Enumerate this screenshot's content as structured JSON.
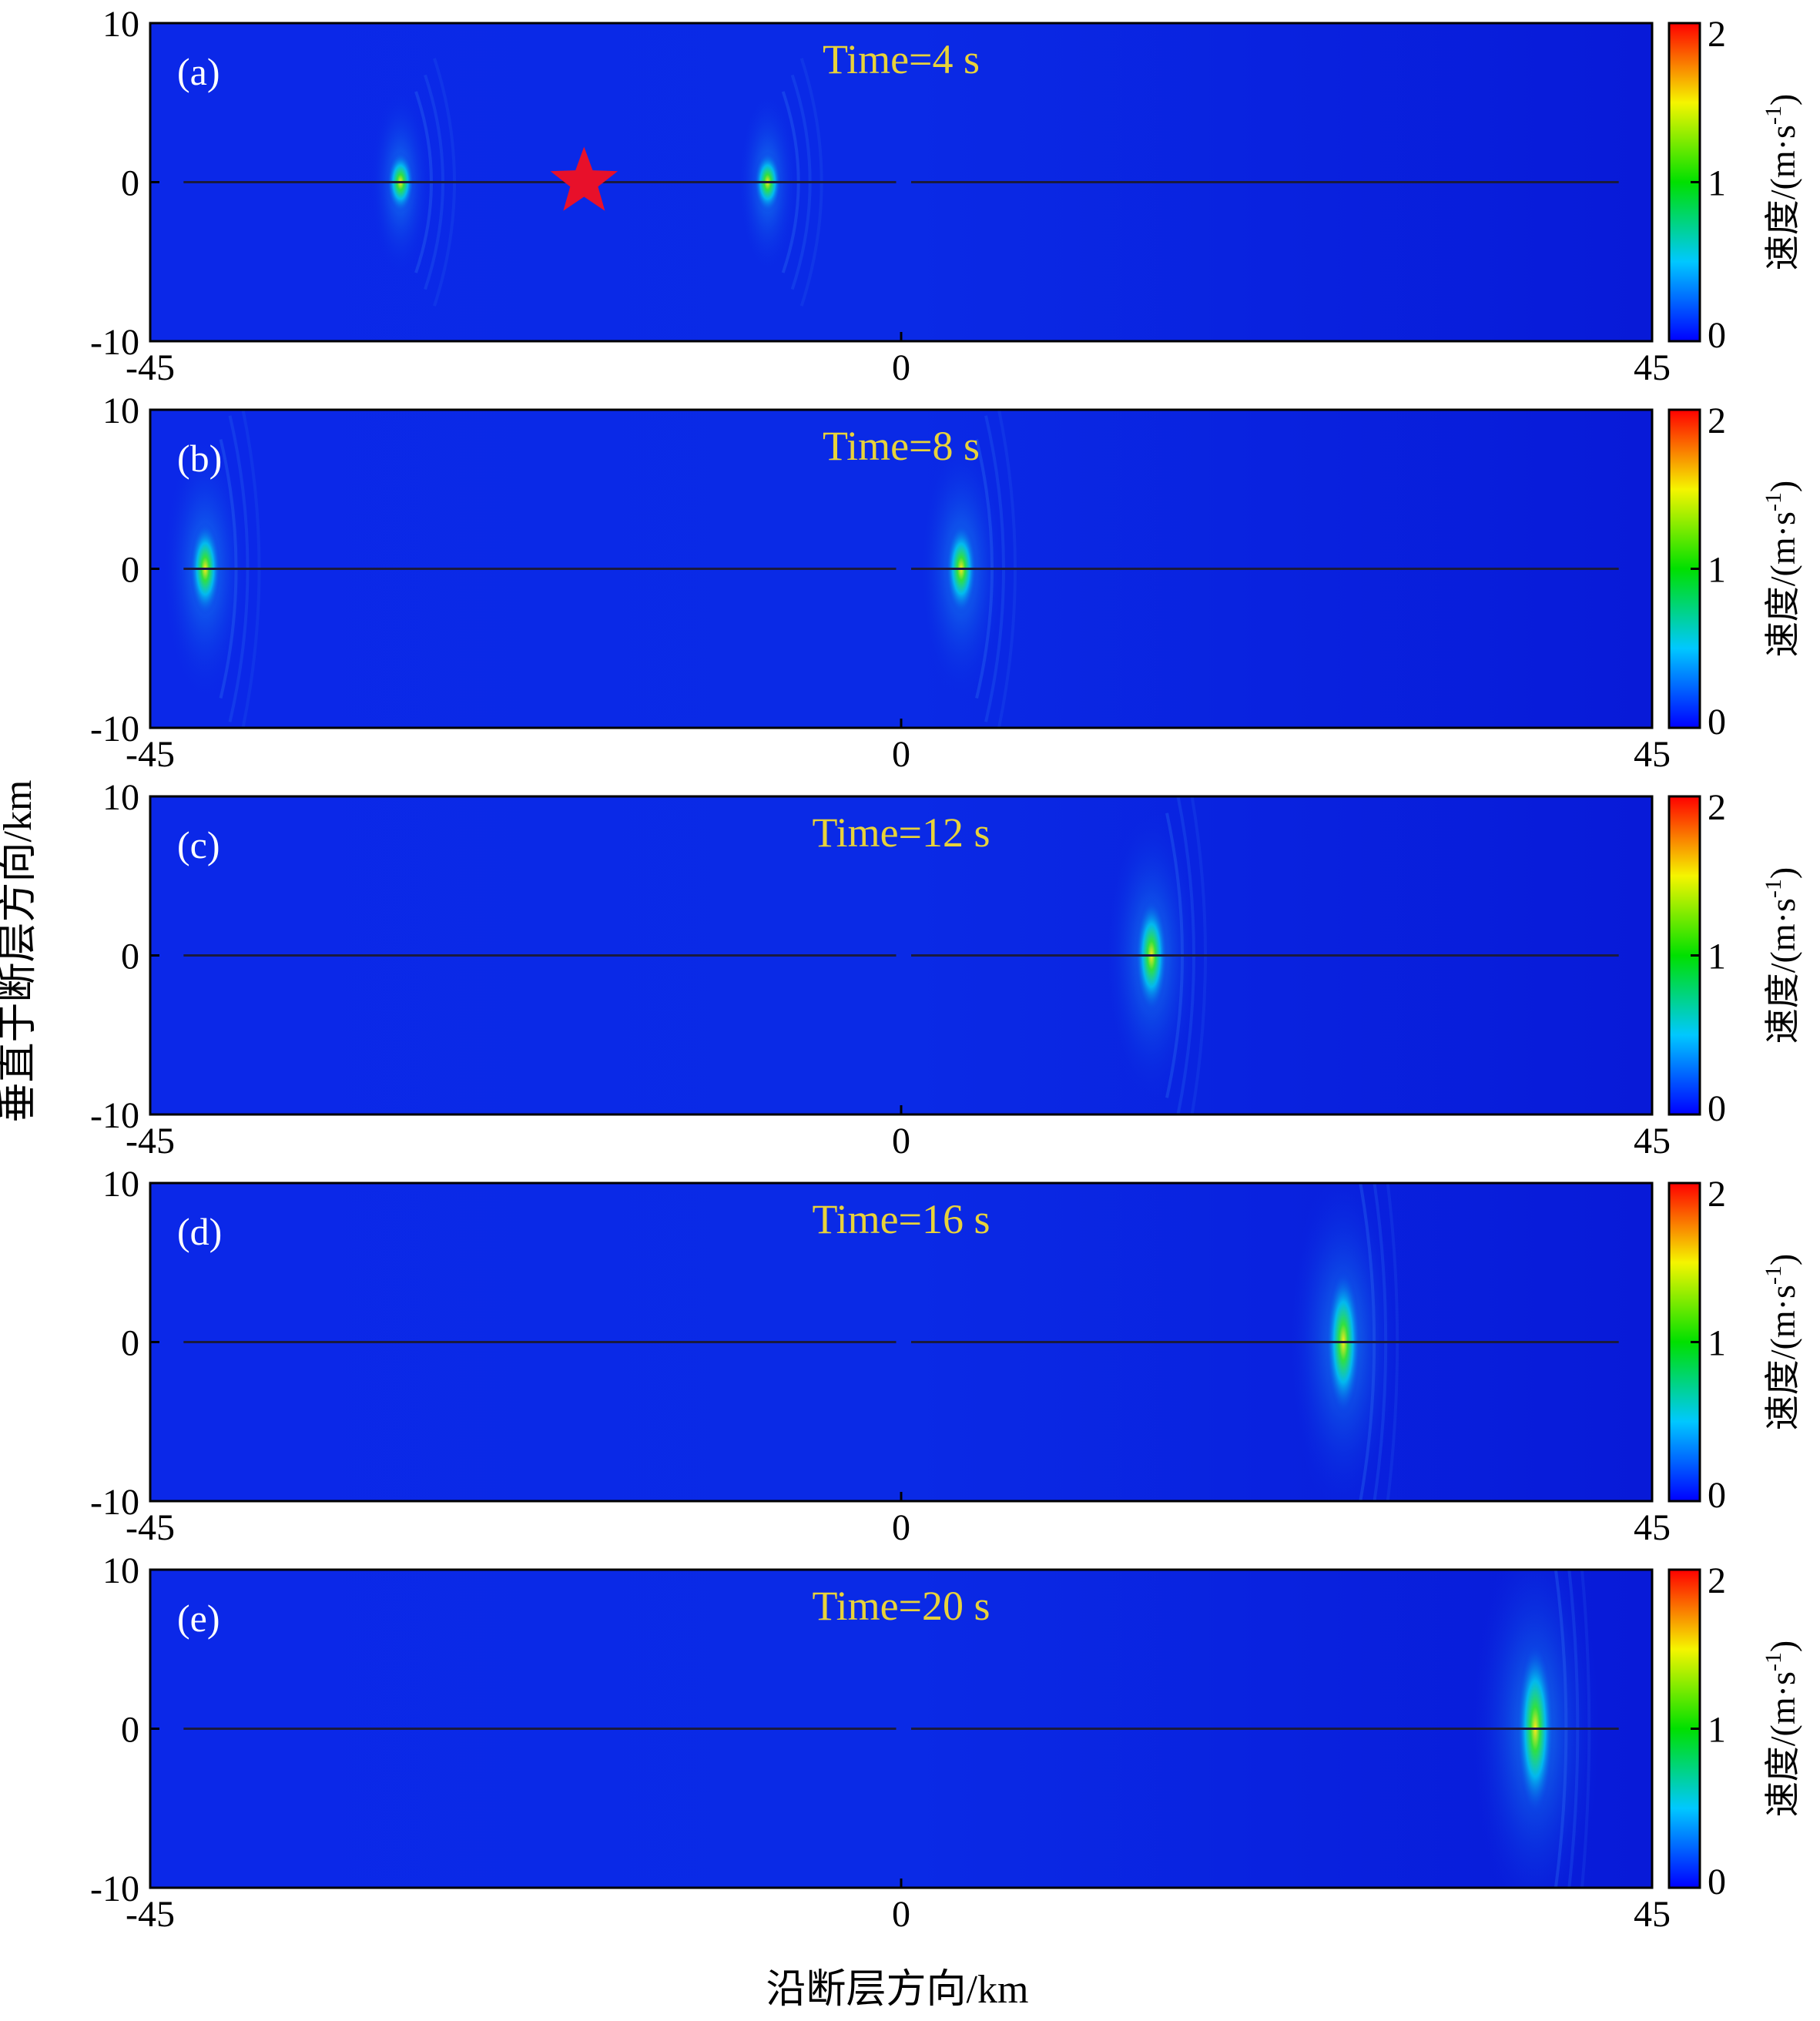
{
  "figure": {
    "y_axis_label": "垂直于断层方向/km",
    "x_axis_label": "沿断层方向/km",
    "colorbar_label_main": "速度/(m·s",
    "colorbar_label_sup": "-1",
    "colorbar_label_close": ")",
    "colors": {
      "background_field": "#0a1fe6",
      "fault_line": "#1a1a40",
      "annotation_text": "#e8d23a",
      "epicenter_star": "#e8102a"
    }
  },
  "chart_data": [
    {
      "type": "heatmap",
      "panel": "(a)",
      "title": "Time=4 s",
      "time_s": 4,
      "x_ticks": [
        "-45",
        "0",
        "45"
      ],
      "y_ticks": [
        "10",
        "0",
        "-10"
      ],
      "xlim": [
        -45,
        45
      ],
      "ylim": [
        -10,
        10
      ],
      "colorbar": {
        "ticks": [
          "2",
          "1",
          "0"
        ],
        "range": [
          0,
          2
        ]
      },
      "epicenter": {
        "x": -19,
        "y": 0,
        "marker": "star"
      },
      "features": [
        {
          "x": -30,
          "y": 0,
          "peak": 0.9,
          "spread": 0.7
        },
        {
          "x": -8,
          "y": 0,
          "peak": 0.9,
          "spread": 0.7
        }
      ]
    },
    {
      "type": "heatmap",
      "panel": "(b)",
      "title": "Time=8 s",
      "time_s": 8,
      "x_ticks": [
        "-45",
        "0",
        "45"
      ],
      "y_ticks": [
        "10",
        "0",
        "-10"
      ],
      "xlim": [
        -45,
        45
      ],
      "ylim": [
        -10,
        10
      ],
      "colorbar": {
        "ticks": [
          "2",
          "1",
          "0"
        ],
        "range": [
          0,
          2
        ]
      },
      "features": [
        {
          "x": -41.7,
          "y": 0,
          "peak": 1.05,
          "spread": 1.0
        },
        {
          "x": 3.6,
          "y": 0,
          "peak": 1.0,
          "spread": 1.0
        }
      ]
    },
    {
      "type": "heatmap",
      "panel": "(c)",
      "title": "Time=12 s",
      "time_s": 12,
      "x_ticks": [
        "-45",
        "0",
        "45"
      ],
      "y_ticks": [
        "10",
        "0",
        "-10"
      ],
      "xlim": [
        -45,
        45
      ],
      "ylim": [
        -10,
        10
      ],
      "colorbar": {
        "ticks": [
          "2",
          "1",
          "0"
        ],
        "range": [
          0,
          2
        ]
      },
      "features": [
        {
          "x": 15,
          "y": 0,
          "peak": 1.3,
          "spread": 1.1
        }
      ]
    },
    {
      "type": "heatmap",
      "panel": "(d)",
      "title": "Time=16 s",
      "time_s": 16,
      "x_ticks": [
        "-45",
        "0",
        "45"
      ],
      "y_ticks": [
        "10",
        "0",
        "-10"
      ],
      "xlim": [
        -45,
        45
      ],
      "ylim": [
        -10,
        10
      ],
      "colorbar": {
        "ticks": [
          "2",
          "1",
          "0"
        ],
        "range": [
          0,
          2
        ]
      },
      "features": [
        {
          "x": 26.5,
          "y": 0,
          "peak": 1.5,
          "spread": 1.3
        }
      ]
    },
    {
      "type": "heatmap",
      "panel": "(e)",
      "title": "Time=20 s",
      "time_s": 20,
      "x_ticks": [
        "-45",
        "0",
        "45"
      ],
      "y_ticks": [
        "10",
        "0",
        "-10"
      ],
      "xlim": [
        -45,
        45
      ],
      "ylim": [
        -10,
        10
      ],
      "colorbar": {
        "ticks": [
          "2",
          "1",
          "0"
        ],
        "range": [
          0,
          2
        ]
      },
      "features": [
        {
          "x": 38,
          "y": 0,
          "peak": 1.6,
          "spread": 1.5
        }
      ]
    }
  ]
}
